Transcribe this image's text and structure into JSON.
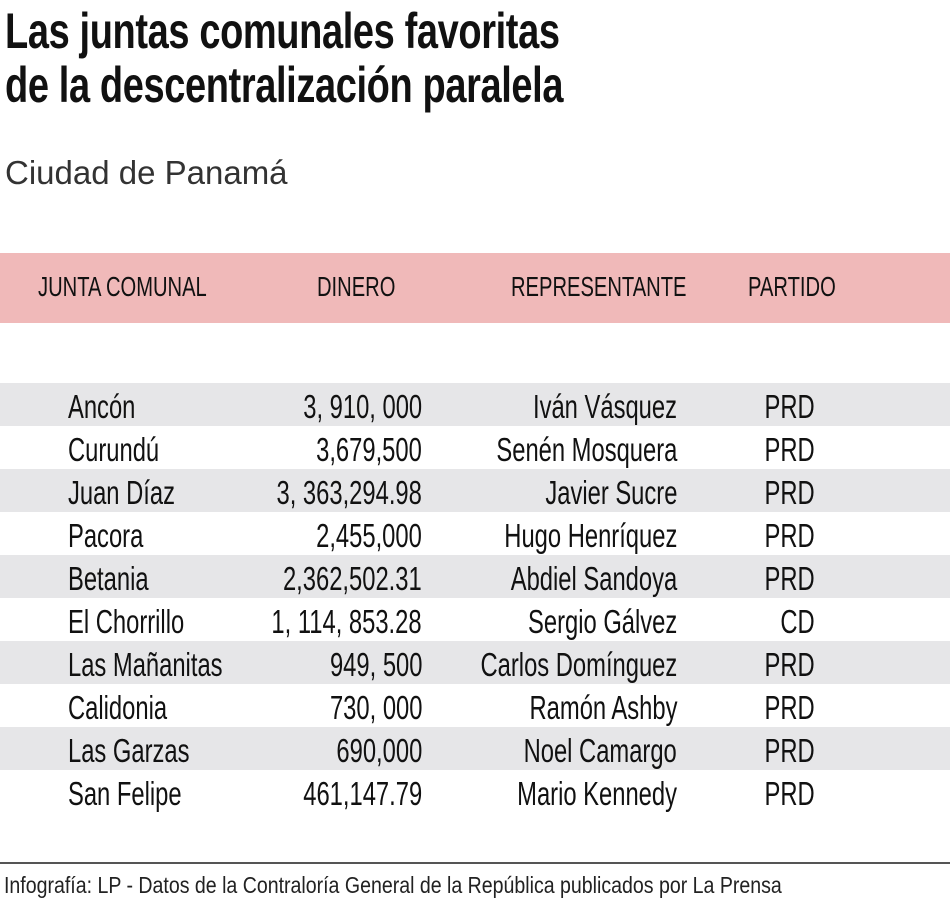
{
  "title_lines": [
    "Las juntas comunales favoritas",
    "de la descentralización paralela"
  ],
  "subtitle": "Ciudad de Panamá",
  "colors": {
    "header_band": "#f0b9b9",
    "stripe": "#e6e6e8"
  },
  "chart_data": {
    "type": "table",
    "columns": [
      "JUNTA COMUNAL",
      "DINERO",
      "REPRESENTANTE",
      "PARTIDO"
    ],
    "rows": [
      [
        "Ancón",
        "3, 910, 000",
        "Iván Vásquez",
        "PRD"
      ],
      [
        "Curundú",
        "3,679,500",
        "Senén Mosquera",
        "PRD"
      ],
      [
        "Juan  Díaz",
        "3, 363,294.98",
        "Javier  Sucre",
        "PRD"
      ],
      [
        "Pacora",
        "2,455,000",
        "Hugo Henríquez",
        "PRD"
      ],
      [
        "Betania",
        "2,362,502.31",
        "Abdiel Sandoya",
        "PRD"
      ],
      [
        "El Chorrillo",
        "1, 114, 853.28",
        "Sergio Gálvez",
        "CD"
      ],
      [
        "Las Mañanitas",
        "949, 500",
        "Carlos Domínguez",
        "PRD"
      ],
      [
        "Calidonia",
        "730, 000",
        "Ramón Ashby",
        "PRD"
      ],
      [
        "Las Garzas",
        "690,000",
        "Noel Camargo",
        "PRD"
      ],
      [
        "San Felipe",
        "461,147.79",
        "Mario Kennedy",
        "PRD"
      ]
    ]
  },
  "source": "Infografía: LP - Datos de la Contraloría General de la República publicados por La Prensa"
}
